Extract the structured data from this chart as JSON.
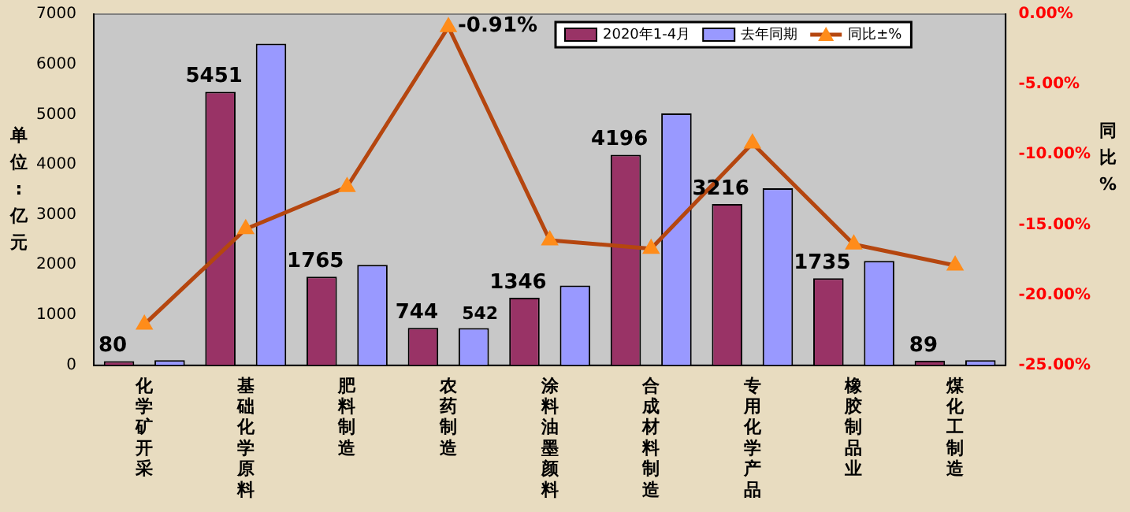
{
  "chart_data": {
    "type": "bar",
    "categories": [
      "化学矿开采",
      "基础化学原料",
      "肥料制造",
      "农药制造",
      "涂料油墨颜料",
      "合成材料制造",
      "专用化学产品",
      "橡胶制品业",
      "煤化工制造"
    ],
    "series": [
      {
        "name": "2020年1-4月",
        "color": "#993366",
        "values": [
          80,
          5451,
          1765,
          744,
          1346,
          4196,
          3216,
          1735,
          89
        ],
        "value_labels": [
          "80",
          "5451",
          "1765",
          "744",
          "1346",
          "4196",
          "3216",
          "1735",
          "89"
        ]
      },
      {
        "name": "去年同期",
        "color": "#9999ff",
        "values": [
          100,
          6410,
          2000,
          740,
          1590,
          5020,
          3530,
          2080,
          100
        ]
      },
      {
        "name": "同比±%",
        "type": "line",
        "axis": "y2",
        "color": "#b5460f",
        "marker": "triangle",
        "values": [
          -22.1,
          -15.3,
          -12.3,
          -0.91,
          -16.1,
          -16.7,
          -9.2,
          -16.4,
          -17.9
        ],
        "value_labels": [
          null,
          null,
          null,
          "-0.91%",
          null,
          null,
          null,
          null,
          null
        ]
      }
    ],
    "ylabel": "单位:亿元",
    "y2label": "同比%",
    "ylim": [
      0,
      7000
    ],
    "yticks": [
      0,
      1000,
      2000,
      3000,
      4000,
      5000,
      6000,
      7000
    ],
    "y2lim": [
      -25,
      0
    ],
    "y2ticks": [
      {
        "value": 0,
        "label": "0.00%"
      },
      {
        "value": -5,
        "label": "-5.00%"
      },
      {
        "value": -10,
        "label": "-10.00%"
      },
      {
        "value": -15,
        "label": "-15.00%"
      },
      {
        "value": -20,
        "label": "-20.00%"
      },
      {
        "value": -25,
        "label": "-25.00%"
      }
    ],
    "annotations": [
      "542"
    ],
    "grid": false,
    "legend": "top right"
  }
}
